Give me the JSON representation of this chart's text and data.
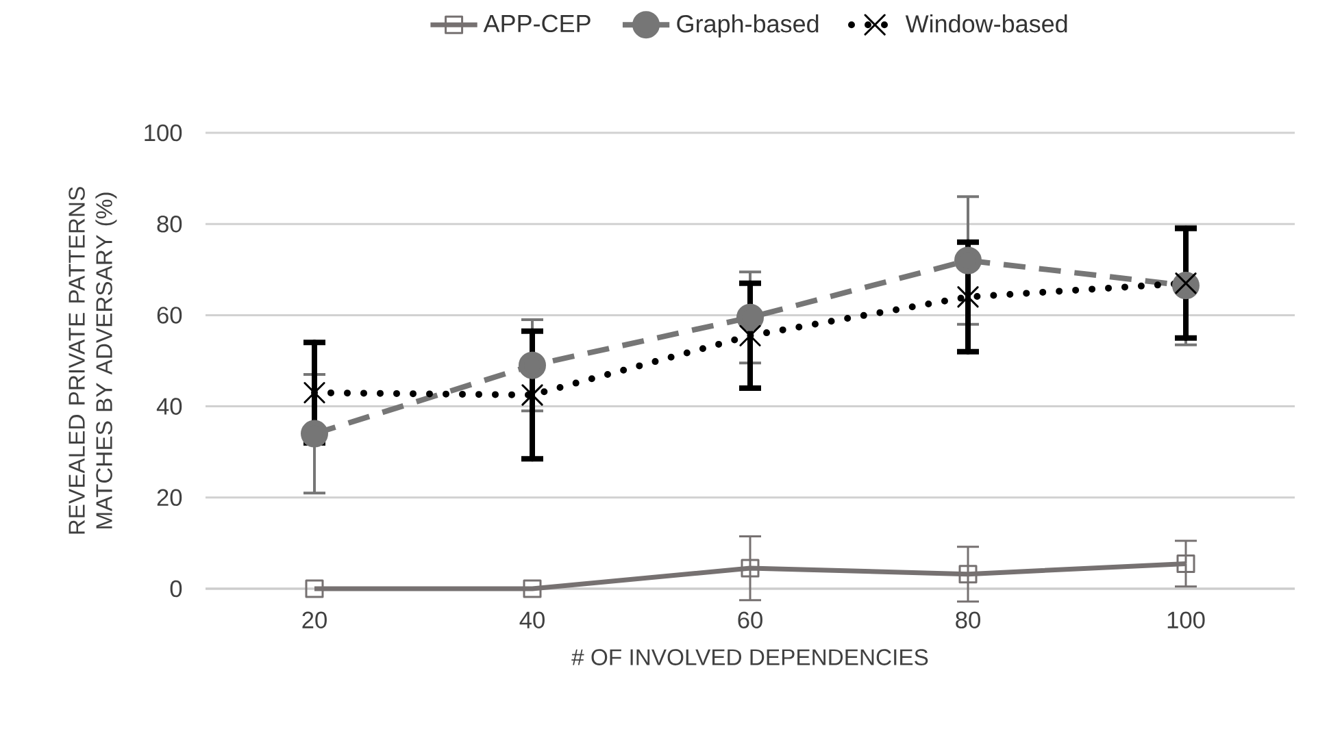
{
  "chart_data": {
    "type": "line",
    "xlabel": "# OF INVOLVED DEPENDENCIES",
    "ylabel": "REVEALED PRIVATE PATTERNS MATCHES BY ADVERSARY (%)",
    "categories": [
      "20",
      "40",
      "60",
      "80",
      "100"
    ],
    "ylim": [
      0,
      100
    ],
    "yticks": [
      0,
      20,
      40,
      60,
      80,
      100
    ],
    "grid": "y",
    "legend": "top",
    "series": [
      {
        "name": "APP-CEP",
        "color": "#767171",
        "marker": "square",
        "line_style": "solid",
        "values": [
          0,
          0,
          4.5,
          3.2,
          5.5
        ],
        "errors": [
          null,
          null,
          7,
          6,
          5
        ]
      },
      {
        "name": "Graph-based",
        "color": "#767676",
        "marker": "circle",
        "line_style": "dashed",
        "values": [
          34,
          49,
          59.5,
          72,
          66.5
        ],
        "errors": [
          13,
          10,
          10,
          14,
          13
        ]
      },
      {
        "name": "Window-based",
        "color": "#000000",
        "marker": "cross",
        "line_style": "dotted",
        "values": [
          43,
          42.5,
          55.5,
          64,
          67
        ],
        "errors": [
          11,
          14,
          11.5,
          12,
          12
        ]
      }
    ]
  }
}
